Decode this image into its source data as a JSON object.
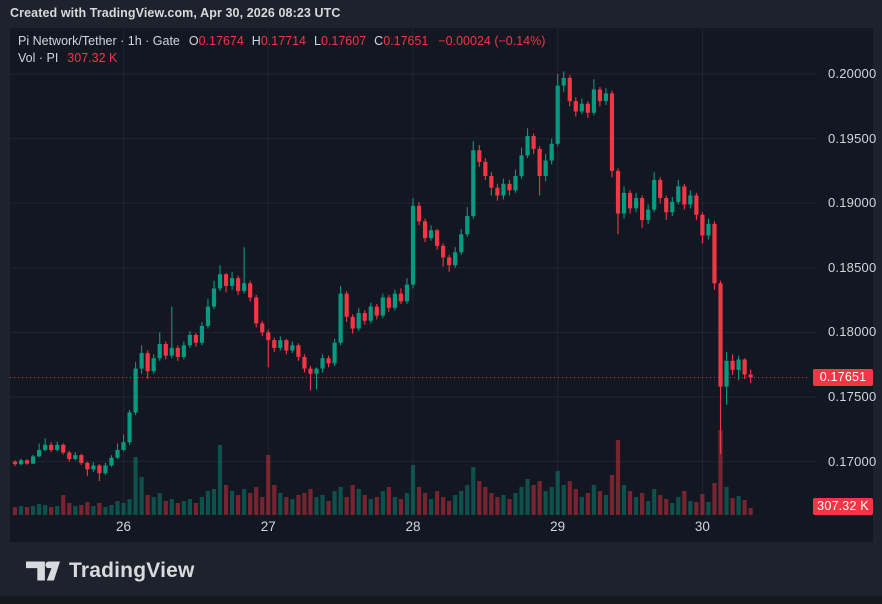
{
  "top_bar": {
    "text": "Created with TradingView.com, Apr 30, 2026 08:23 UTC"
  },
  "legend": {
    "title": "Pi Network/Tether · 1h · Gate",
    "ohlc": [
      {
        "k": "O",
        "v": "0.17674"
      },
      {
        "k": "H",
        "v": "0.17714"
      },
      {
        "k": "L",
        "v": "0.17607"
      },
      {
        "k": "C",
        "v": "0.17651"
      }
    ],
    "change": "−0.00024 (−0.14%)",
    "vol_label": "Vol · PI",
    "vol_value": "307.32 K"
  },
  "price_axis": {
    "last_label": "0.17651"
  },
  "footer": {
    "brand": "TradingView"
  },
  "colors": {
    "outer_bg": "#1e222d",
    "panel_bg": "#131722",
    "up": "#089981",
    "down": "#f23645",
    "vol_up": "rgba(8,153,129,0.45)",
    "vol_down": "rgba(242,54,69,0.45)",
    "grid": "rgba(255,255,255,0.06)",
    "text": "#d1d4dc",
    "badge_bg": "#f23645"
  },
  "chart_data": {
    "type": "candlestick",
    "title": "Pi Network/Tether",
    "symbol": "PI/USDT",
    "interval": "1h",
    "exchange": "Gate",
    "volume_unit": "K",
    "last_close": 0.17651,
    "ylim": [
      0.1685,
      0.2005
    ],
    "y_ticks": [
      0.2,
      0.195,
      0.19,
      0.185,
      0.18,
      0.175,
      0.17
    ],
    "x_labels": [
      {
        "text": "26",
        "index": 18
      },
      {
        "text": "27",
        "index": 42
      },
      {
        "text": "28",
        "index": 66
      },
      {
        "text": "29",
        "index": 90
      },
      {
        "text": "30",
        "index": 114
      }
    ],
    "candles": [
      [
        0.17,
        0.1701,
        0.16965,
        0.1698,
        351
      ],
      [
        0.1698,
        0.17022,
        0.16972,
        0.1701,
        395
      ],
      [
        0.1701,
        0.17018,
        0.16975,
        0.16985,
        351
      ],
      [
        0.16985,
        0.17052,
        0.1698,
        0.1704,
        395
      ],
      [
        0.1704,
        0.1714,
        0.17035,
        0.1709,
        483
      ],
      [
        0.1709,
        0.1718,
        0.1708,
        0.1713,
        439
      ],
      [
        0.1713,
        0.1715,
        0.17075,
        0.1709,
        351
      ],
      [
        0.1709,
        0.17155,
        0.1708,
        0.1713,
        395
      ],
      [
        0.1713,
        0.1714,
        0.17055,
        0.1707,
        878
      ],
      [
        0.1707,
        0.17085,
        0.17,
        0.1702,
        527
      ],
      [
        0.1702,
        0.17075,
        0.1701,
        0.1705,
        395
      ],
      [
        0.1705,
        0.1706,
        0.16975,
        0.1699,
        439
      ],
      [
        0.1699,
        0.17,
        0.1689,
        0.1694,
        571
      ],
      [
        0.1694,
        0.16995,
        0.1692,
        0.1697,
        395
      ],
      [
        0.1697,
        0.1698,
        0.1685,
        0.1691,
        527
      ],
      [
        0.1691,
        0.1699,
        0.16895,
        0.1697,
        351
      ],
      [
        0.1697,
        0.1705,
        0.1696,
        0.1703,
        439
      ],
      [
        0.1703,
        0.1714,
        0.1702,
        0.1709,
        615
      ],
      [
        0.1709,
        0.1721,
        0.1708,
        0.1715,
        527
      ],
      [
        0.1715,
        0.174,
        0.1713,
        0.1738,
        702
      ],
      [
        0.1738,
        0.1777,
        0.1736,
        0.1772,
        2546
      ],
      [
        0.1772,
        0.179,
        0.1768,
        0.1784,
        1668
      ],
      [
        0.1784,
        0.1786,
        0.1764,
        0.177,
        878
      ],
      [
        0.177,
        0.1783,
        0.1768,
        0.178,
        790
      ],
      [
        0.178,
        0.18,
        0.1778,
        0.1791,
        966
      ],
      [
        0.1791,
        0.1793,
        0.1779,
        0.1782,
        615
      ],
      [
        0.1782,
        0.182,
        0.178,
        0.1788,
        702
      ],
      [
        0.1788,
        0.179,
        0.1778,
        0.1781,
        527
      ],
      [
        0.1781,
        0.1793,
        0.1779,
        0.179,
        615
      ],
      [
        0.179,
        0.1801,
        0.1788,
        0.1798,
        702
      ],
      [
        0.1798,
        0.17995,
        0.1789,
        0.1792,
        527
      ],
      [
        0.1792,
        0.1808,
        0.179,
        0.1805,
        790
      ],
      [
        0.1805,
        0.1826,
        0.1803,
        0.182,
        1054
      ],
      [
        0.182,
        0.184,
        0.1818,
        0.1834,
        1141
      ],
      [
        0.1834,
        0.1852,
        0.1832,
        0.1845,
        3073
      ],
      [
        0.1845,
        0.1846,
        0.1831,
        0.1836,
        1317
      ],
      [
        0.1836,
        0.1847,
        0.1833,
        0.1842,
        1054
      ],
      [
        0.1842,
        0.1844,
        0.1829,
        0.1832,
        878
      ],
      [
        0.1832,
        0.1866,
        0.183,
        0.1838,
        1141
      ],
      [
        0.1838,
        0.184,
        0.1824,
        0.1827,
        966
      ],
      [
        0.1827,
        0.1829,
        0.1804,
        0.1807,
        1229
      ],
      [
        0.1807,
        0.1809,
        0.1797,
        0.18,
        790
      ],
      [
        0.18,
        0.1802,
        0.1773,
        0.1794,
        2634
      ],
      [
        0.1794,
        0.1796,
        0.1785,
        0.1788,
        1317
      ],
      [
        0.1788,
        0.1797,
        0.1786,
        0.1794,
        966
      ],
      [
        0.1794,
        0.1795,
        0.1783,
        0.1786,
        790
      ],
      [
        0.1786,
        0.1793,
        0.1784,
        0.179,
        702
      ],
      [
        0.179,
        0.17915,
        0.1778,
        0.1781,
        878
      ],
      [
        0.1781,
        0.1783,
        0.1769,
        0.1772,
        966
      ],
      [
        0.1772,
        0.1774,
        0.1755,
        0.1768,
        1141
      ],
      [
        0.1768,
        0.1773,
        0.1756,
        0.1772,
        790
      ],
      [
        0.1772,
        0.1783,
        0.1769,
        0.178,
        878
      ],
      [
        0.178,
        0.1782,
        0.1773,
        0.1776,
        615
      ],
      [
        0.1776,
        0.1795,
        0.1774,
        0.1792,
        1054
      ],
      [
        0.1792,
        0.1836,
        0.179,
        0.183,
        1229
      ],
      [
        0.183,
        0.1832,
        0.1808,
        0.1812,
        790
      ],
      [
        0.1812,
        0.1814,
        0.1799,
        0.1803,
        1317
      ],
      [
        0.1803,
        0.1819,
        0.1801,
        0.1815,
        1141
      ],
      [
        0.1815,
        0.1817,
        0.1806,
        0.1809,
        878
      ],
      [
        0.1809,
        0.1823,
        0.1807,
        0.182,
        702
      ],
      [
        0.182,
        0.1822,
        0.181,
        0.1813,
        790
      ],
      [
        0.1813,
        0.183,
        0.1811,
        0.1827,
        1054
      ],
      [
        0.1827,
        0.1829,
        0.1816,
        0.1819,
        1229
      ],
      [
        0.1819,
        0.1833,
        0.1817,
        0.183,
        790
      ],
      [
        0.183,
        0.1834,
        0.1822,
        0.1824,
        702
      ],
      [
        0.1824,
        0.1842,
        0.1822,
        0.1837,
        966
      ],
      [
        0.1837,
        0.1904,
        0.1834,
        0.1898,
        2195
      ],
      [
        0.1898,
        0.1901,
        0.1883,
        0.1886,
        1229
      ],
      [
        0.1886,
        0.1888,
        0.187,
        0.1873,
        966
      ],
      [
        0.1873,
        0.1883,
        0.1871,
        0.1879,
        702
      ],
      [
        0.1879,
        0.188,
        0.1864,
        0.1867,
        1054
      ],
      [
        0.1867,
        0.1869,
        0.1851,
        0.1858,
        790
      ],
      [
        0.1858,
        0.186,
        0.1847,
        0.1852,
        615
      ],
      [
        0.1852,
        0.1866,
        0.185,
        0.1862,
        878
      ],
      [
        0.1862,
        0.188,
        0.186,
        0.1876,
        1054
      ],
      [
        0.1876,
        0.1897,
        0.1874,
        0.189,
        1317
      ],
      [
        0.189,
        0.1948,
        0.1888,
        0.1941,
        2107
      ],
      [
        0.1941,
        0.1945,
        0.1928,
        0.1932,
        1493
      ],
      [
        0.1932,
        0.1935,
        0.1918,
        0.1921,
        1229
      ],
      [
        0.1921,
        0.1924,
        0.1906,
        0.1912,
        966
      ],
      [
        0.1912,
        0.1915,
        0.1902,
        0.1906,
        790
      ],
      [
        0.1906,
        0.1919,
        0.1903,
        0.1915,
        878
      ],
      [
        0.1915,
        0.1918,
        0.1906,
        0.191,
        702
      ],
      [
        0.191,
        0.1926,
        0.1908,
        0.1921,
        966
      ],
      [
        0.1921,
        0.1943,
        0.1919,
        0.1937,
        1229
      ],
      [
        0.1937,
        0.1958,
        0.1935,
        0.1952,
        1580
      ],
      [
        0.1952,
        0.1954,
        0.1938,
        0.1942,
        1317
      ],
      [
        0.1942,
        0.1944,
        0.1906,
        0.1921,
        1493
      ],
      [
        0.1921,
        0.1938,
        0.1917,
        0.1933,
        1054
      ],
      [
        0.1933,
        0.195,
        0.193,
        0.1946,
        1229
      ],
      [
        0.1946,
        0.2,
        0.1944,
        0.1991,
        1932
      ],
      [
        0.1991,
        0.2002,
        0.1986,
        0.1997,
        1317
      ],
      [
        0.1997,
        0.1999,
        0.1975,
        0.1979,
        1493
      ],
      [
        0.1979,
        0.1982,
        0.1967,
        0.1971,
        1141
      ],
      [
        0.1971,
        0.1981,
        0.1969,
        0.1977,
        790
      ],
      [
        0.1977,
        0.1979,
        0.1966,
        0.197,
        966
      ],
      [
        0.197,
        0.1996,
        0.1968,
        0.1988,
        1317
      ],
      [
        0.1988,
        0.199,
        0.1975,
        0.1979,
        1054
      ],
      [
        0.1979,
        0.1989,
        0.1976,
        0.1985,
        878
      ],
      [
        0.1985,
        0.1987,
        0.192,
        0.1925,
        1756
      ],
      [
        0.1925,
        0.1927,
        0.1876,
        0.1892,
        3293
      ],
      [
        0.1892,
        0.1913,
        0.1888,
        0.1908,
        1317
      ],
      [
        0.1908,
        0.191,
        0.1892,
        0.1896,
        1054
      ],
      [
        0.1896,
        0.1908,
        0.1893,
        0.1904,
        790
      ],
      [
        0.1904,
        0.1906,
        0.1881,
        0.1887,
        966
      ],
      [
        0.1887,
        0.1899,
        0.1884,
        0.1895,
        615
      ],
      [
        0.1895,
        0.1924,
        0.1893,
        0.1918,
        1141
      ],
      [
        0.1918,
        0.192,
        0.19,
        0.1904,
        878
      ],
      [
        0.1904,
        0.1906,
        0.1887,
        0.1893,
        702
      ],
      [
        0.1893,
        0.1905,
        0.189,
        0.1901,
        527
      ],
      [
        0.1901,
        0.1918,
        0.1899,
        0.1913,
        790
      ],
      [
        0.1913,
        0.1915,
        0.1895,
        0.1899,
        1054
      ],
      [
        0.1899,
        0.191,
        0.1896,
        0.1906,
        615
      ],
      [
        0.1906,
        0.1908,
        0.1887,
        0.1891,
        571
      ],
      [
        0.1891,
        0.1893,
        0.1869,
        0.1875,
        922
      ],
      [
        0.1875,
        0.1888,
        0.1872,
        0.1884,
        571
      ],
      [
        0.1884,
        0.1886,
        0.1833,
        0.1838,
        1405
      ],
      [
        0.1838,
        0.184,
        0.1706,
        0.1758,
        3732
      ],
      [
        0.1758,
        0.1785,
        0.1744,
        0.1778,
        1229
      ],
      [
        0.1778,
        0.1783,
        0.1767,
        0.1771,
        746
      ],
      [
        0.1771,
        0.1782,
        0.1763,
        0.1779,
        834
      ],
      [
        0.1779,
        0.178,
        0.1764,
        0.17674,
        659
      ],
      [
        0.17674,
        0.17714,
        0.17607,
        0.17651,
        307.32
      ]
    ]
  }
}
